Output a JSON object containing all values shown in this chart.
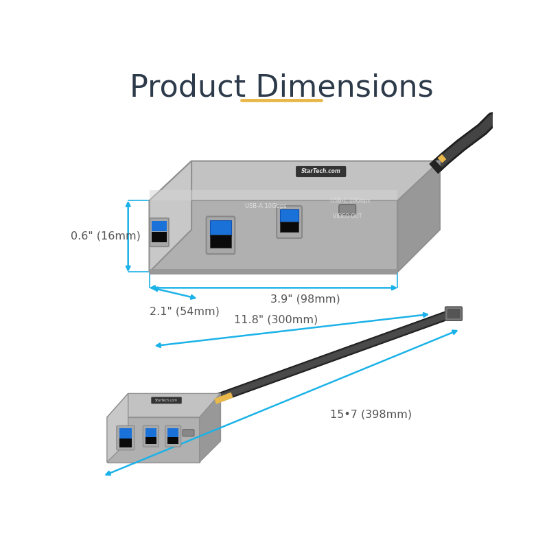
{
  "title": "Product Dimensions",
  "title_color": "#2d3a4a",
  "title_fontsize": 32,
  "underline_color": "#e8b84b",
  "bg_color": "#ffffff",
  "arrow_color": "#1ab2e8",
  "text_color": "#555555",
  "dim_fontsize": 11.5,
  "hub_top_color": "#b8b8b8",
  "hub_top_hi": "#d0d0d0",
  "hub_front_color": "#a0a0a0",
  "hub_side_color": "#c0c0c0",
  "hub_edge": "#909090",
  "usb_blue": "#1a72d8",
  "usb_black": "#111111",
  "usb_bezel": "#888888",
  "cable_dark": "#282828",
  "cable_mid": "#444444",
  "cable_ring": "#e8b84b",
  "connector_gray": "#7a7a7a",
  "label_white": "#eeeeee",
  "dim_height": "0.6\" (16mm)",
  "dim_width": "2.1\" (54mm)",
  "dim_length": "3.9\" (98mm)",
  "dim_cable": "11.8\" (300mm)",
  "dim_total": "15•7 (398mm)"
}
